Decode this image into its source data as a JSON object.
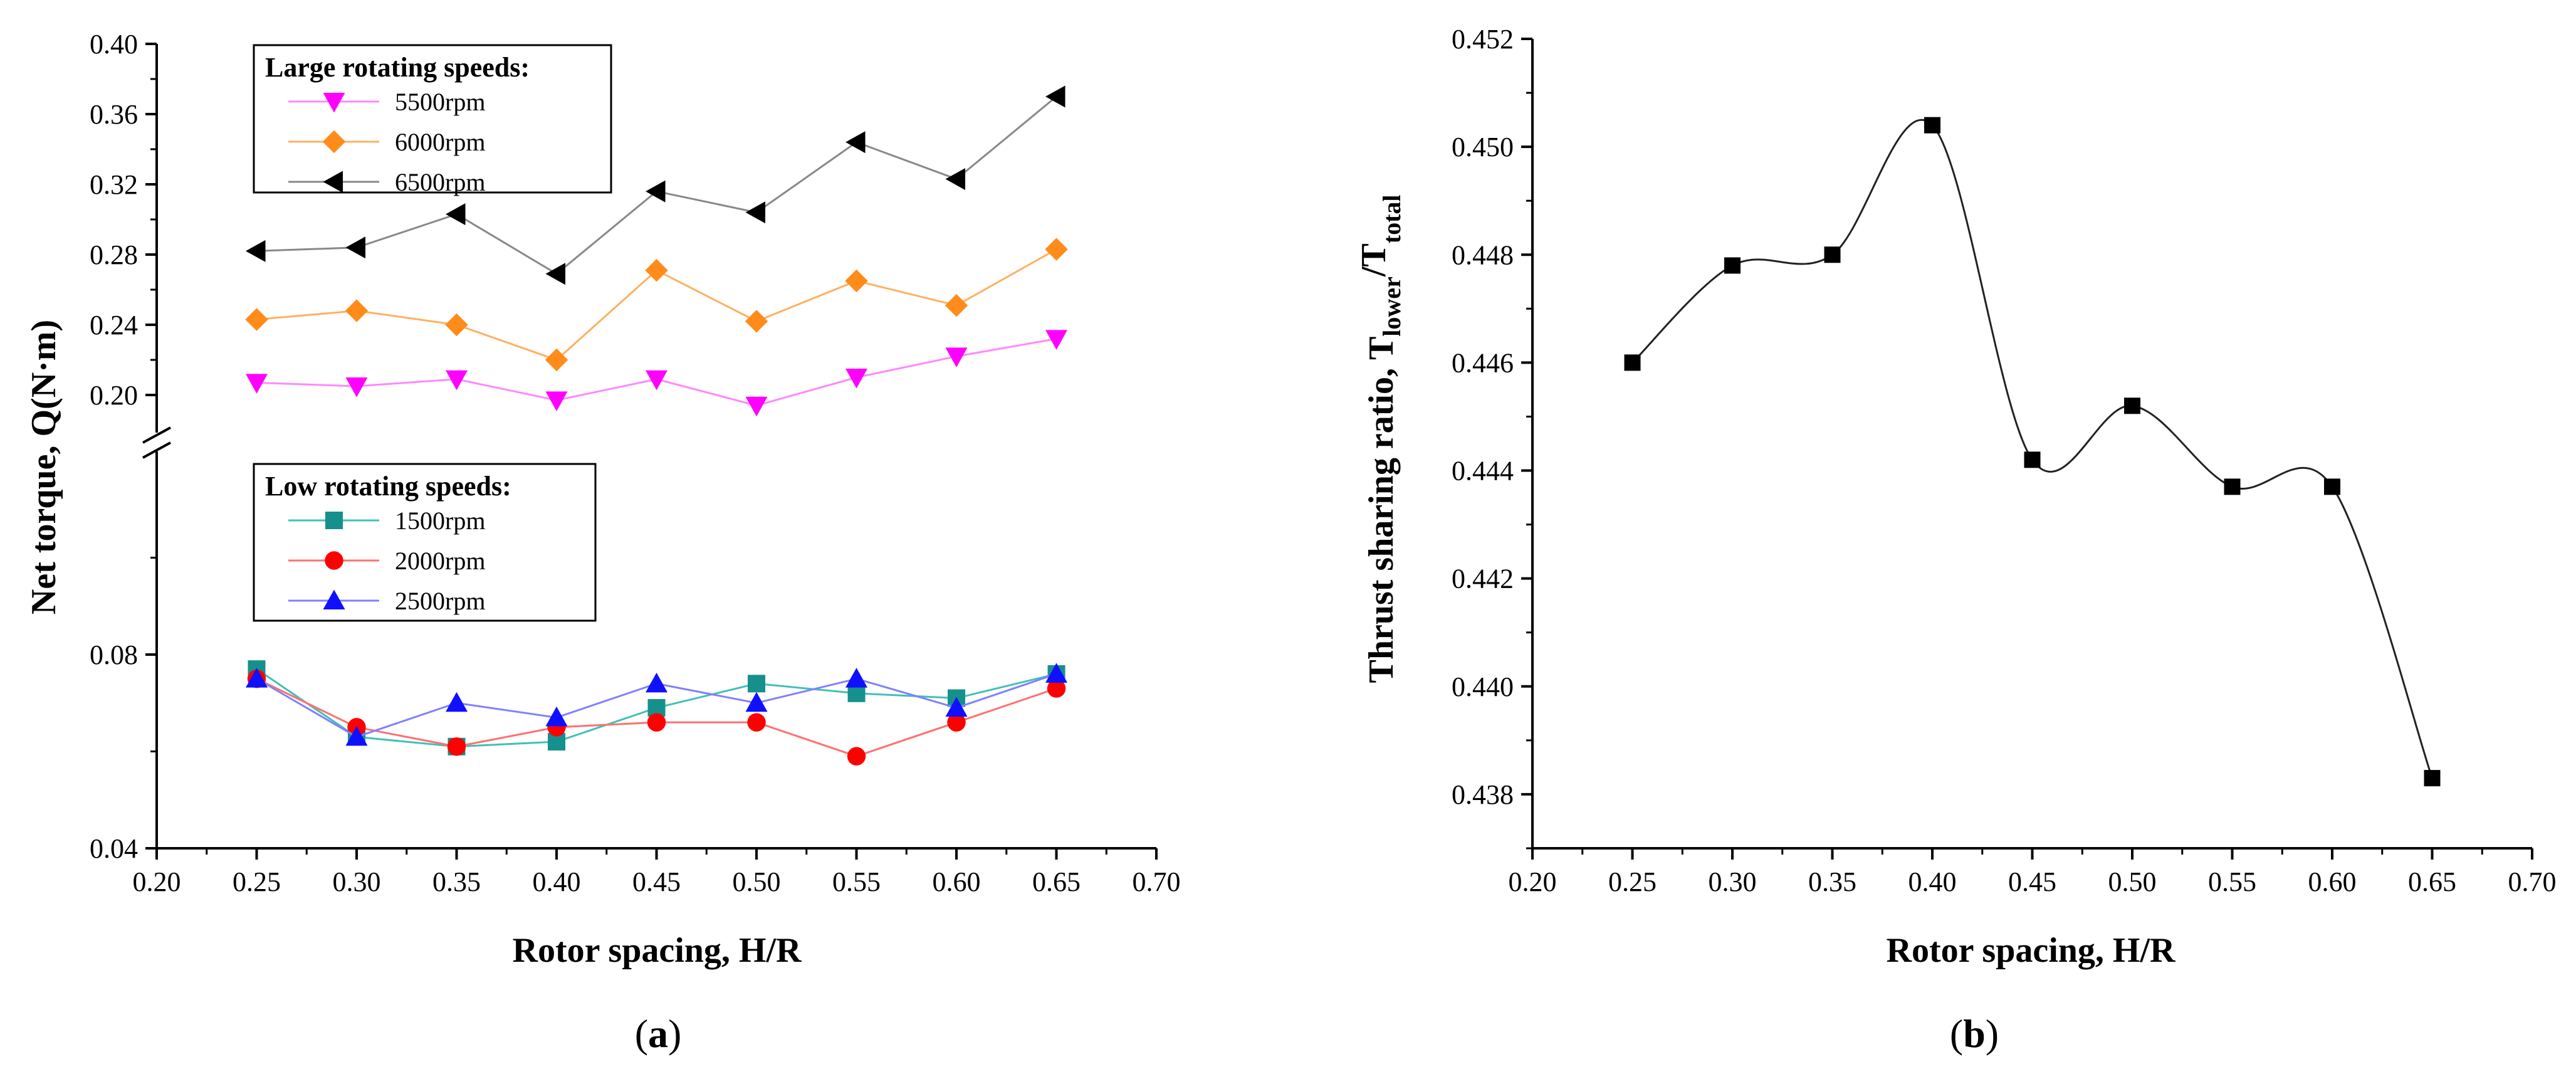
{
  "chart_data": [
    {
      "type": "line",
      "panel_label": "a",
      "xlabel": "Rotor spacing, H/R",
      "ylabel": "Net torque, Q(N·m)",
      "xlim": [
        0.2,
        0.7
      ],
      "xticks": [
        "0.20",
        "0.25",
        "0.30",
        "0.35",
        "0.40",
        "0.45",
        "0.50",
        "0.55",
        "0.60",
        "0.65",
        "0.70"
      ],
      "x": [
        0.25,
        0.3,
        0.35,
        0.4,
        0.45,
        0.5,
        0.55,
        0.6,
        0.65
      ],
      "upper_axis": {
        "ylim": [
          0.185,
          0.4
        ],
        "yticks": [
          "0.20",
          "0.24",
          "0.28",
          "0.32",
          "0.36",
          "0.40"
        ],
        "legend_title": "Large rotating speeds:",
        "series": [
          {
            "name": "5500rpm",
            "color": "#ff00ff",
            "line_color": "#ff88ff",
            "marker": "triangle-down",
            "values": [
              0.207,
              0.205,
              0.209,
              0.197,
              0.209,
              0.194,
              0.21,
              0.222,
              0.232
            ]
          },
          {
            "name": "6000rpm",
            "color": "#ff8c1a",
            "line_color": "#ffb060",
            "marker": "diamond",
            "values": [
              0.243,
              0.248,
              0.24,
              0.22,
              0.271,
              0.242,
              0.265,
              0.251,
              0.283
            ]
          },
          {
            "name": "6500rpm",
            "color": "#000000",
            "line_color": "#888888",
            "marker": "triangle-left",
            "values": [
              0.282,
              0.284,
              0.303,
              0.269,
              0.316,
              0.304,
              0.344,
              0.323,
              0.37
            ]
          }
        ]
      },
      "lower_axis": {
        "ylim": [
          0.04,
          0.12
        ],
        "yticks": [
          "0.04",
          "0.08"
        ],
        "legend_title": "Low rotating speeds:",
        "series": [
          {
            "name": "1500rpm",
            "color": "#16908c",
            "line_color": "#40c0b8",
            "marker": "square",
            "values": [
              0.077,
              0.063,
              0.061,
              0.062,
              0.069,
              0.074,
              0.072,
              0.071,
              0.076
            ]
          },
          {
            "name": "2000rpm",
            "color": "#ff0000",
            "line_color": "#ff7070",
            "marker": "circle",
            "values": [
              0.075,
              0.065,
              0.061,
              0.065,
              0.066,
              0.066,
              0.059,
              0.066,
              0.073
            ]
          },
          {
            "name": "2500rpm",
            "color": "#1010ff",
            "line_color": "#8080ff",
            "marker": "triangle-up",
            "values": [
              0.075,
              0.063,
              0.07,
              0.067,
              0.074,
              0.07,
              0.075,
              0.069,
              0.076
            ]
          }
        ]
      }
    },
    {
      "type": "scatter",
      "panel_label": "b",
      "xlabel": "Rotor spacing, H/R",
      "ylabel_main": "Thrust sharing ratio, T",
      "ylabel_sub1": "lower",
      "ylabel_mid": "/T",
      "ylabel_sub2": "total",
      "xlim": [
        0.2,
        0.7
      ],
      "ylim": [
        0.437,
        0.452
      ],
      "xticks": [
        "0.20",
        "0.25",
        "0.30",
        "0.35",
        "0.40",
        "0.45",
        "0.50",
        "0.55",
        "0.60",
        "0.65",
        "0.70"
      ],
      "yticks": [
        "0.438",
        "0.440",
        "0.442",
        "0.444",
        "0.446",
        "0.448",
        "0.450",
        "0.452"
      ],
      "series": [
        {
          "name": "Thrust sharing ratio",
          "color": "#000000",
          "marker": "square",
          "fit": "smooth-spline",
          "x": [
            0.25,
            0.3,
            0.35,
            0.4,
            0.45,
            0.5,
            0.55,
            0.6,
            0.65
          ],
          "values": [
            0.446,
            0.4478,
            0.448,
            0.4504,
            0.4442,
            0.4452,
            0.4437,
            0.4437,
            0.4383
          ]
        }
      ]
    }
  ]
}
